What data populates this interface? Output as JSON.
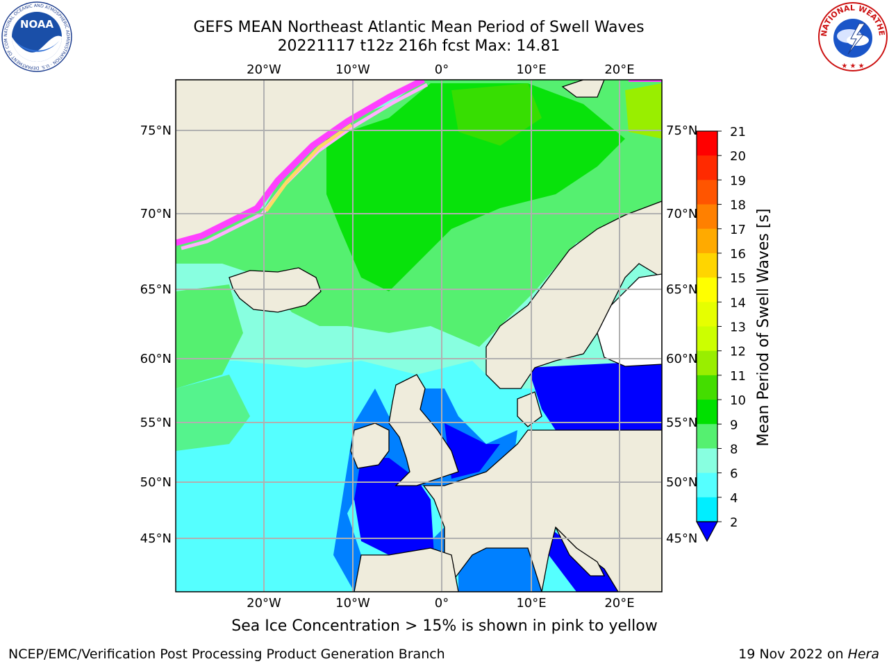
{
  "title": {
    "line1": "GEFS MEAN Northeast Atlantic Mean Period of Swell Waves",
    "line2": "20221117 t12z 216h fcst   Max: 14.81"
  },
  "map": {
    "lon_labels": [
      "20°W",
      "10°W",
      "0°",
      "10°E",
      "20°E"
    ],
    "lat_labels": [
      "75°N",
      "70°N",
      "65°N",
      "60°N",
      "55°N",
      "50°N",
      "45°N"
    ],
    "colors": {
      "land": "#efecdc",
      "ice_pink": "#ff40ff",
      "ice_yellow": "#ffd966"
    }
  },
  "colorbar": {
    "label": "Mean Period of Swell Waves [s]",
    "ticks": [
      "21",
      "20",
      "19",
      "18",
      "17",
      "16",
      "15",
      "14",
      "13",
      "12",
      "11",
      "10",
      "9",
      "8",
      "6",
      "4",
      "2"
    ],
    "colors": [
      "#ff0000",
      "#ff2a00",
      "#ff5500",
      "#ff8000",
      "#ffaa00",
      "#ffd500",
      "#ffff00",
      "#e6ff00",
      "#ccff00",
      "#99ee00",
      "#44dd00",
      "#00e000",
      "#55f070",
      "#88ffe0",
      "#55ffff",
      "#00eeff",
      "#0080ff",
      "#0000ff"
    ]
  },
  "footer": {
    "note": "Sea Ice Concentration > 15% is shown in pink to yellow",
    "branch": "NCEP/EMC/Verification Post Processing Product Generation Branch",
    "date": "19 Nov 2022 on",
    "host": "Hera"
  },
  "logos": {
    "noaa": "NOAA",
    "noaa_ring": "NATIONAL OCEANIC AND ATMOSPHERIC ADMINISTRATION · U.S. DEPARTMENT OF COMMERCE",
    "nws_ring": "NATIONAL WEATHER SERVICE"
  }
}
